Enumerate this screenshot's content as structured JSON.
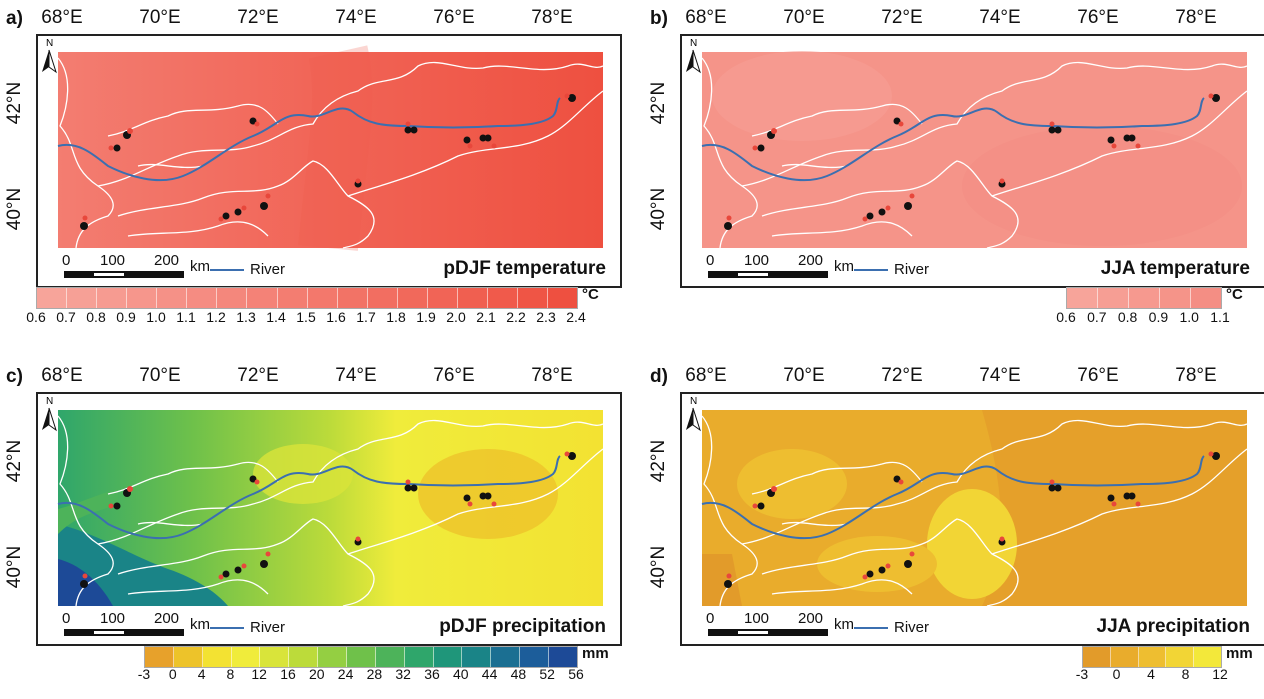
{
  "lon_labels": [
    "68°E",
    "70°E",
    "72°E",
    "74°E",
    "76°E",
    "78°E"
  ],
  "lat_labels": [
    "42°N",
    "40°N"
  ],
  "north_label": "N",
  "scale": {
    "ticks": [
      "0",
      "100",
      "200"
    ],
    "unit": "km"
  },
  "river_label": "River",
  "colors": {
    "river": "#3b6fb0",
    "border": "#ffffff",
    "site": "#111111",
    "site_alt": "#e8473b"
  },
  "panels": [
    {
      "id": "a",
      "label": "a)",
      "title": "pDJF temperature",
      "variable": "temperature",
      "unit": "°C",
      "legend_colors": [
        "#f7a49a",
        "#f6a096",
        "#f69b91",
        "#f6968c",
        "#f59187",
        "#f58c82",
        "#f4877c",
        "#f48277",
        "#f37d71",
        "#f3786c",
        "#f27366",
        "#f26e61",
        "#f1695b",
        "#f16456",
        "#f05f50",
        "#f05a4b",
        "#ef5545",
        "#ee5040"
      ],
      "legend_ticks": [
        "0.6",
        "0.7",
        "0.8",
        "0.9",
        "1.0",
        "1.1",
        "1.2",
        "1.3",
        "1.4",
        "1.5",
        "1.6",
        "1.7",
        "1.8",
        "1.9",
        "2.0",
        "2.1",
        "2.2",
        "2.3",
        "2.4"
      ]
    },
    {
      "id": "b",
      "label": "b)",
      "title": "JJA temperature",
      "variable": "temperature",
      "unit": "°C",
      "legend_colors": [
        "#f7a49a",
        "#f69e94",
        "#f6998f",
        "#f59489",
        "#f48e84"
      ],
      "legend_ticks": [
        "0.6",
        "0.7",
        "0.8",
        "0.9",
        "1.0",
        "1.1"
      ]
    },
    {
      "id": "c",
      "label": "c)",
      "title": "pDJF precipitation",
      "variable": "precipitation",
      "unit": "mm",
      "legend_colors": [
        "#e7a12b",
        "#edc32a",
        "#f3e232",
        "#f0ec3b",
        "#d9e43a",
        "#bcdb3a",
        "#94cf42",
        "#6fc14a",
        "#4db35a",
        "#2fa66b",
        "#1f967a",
        "#1a8487",
        "#1b6f92",
        "#1c5d9a",
        "#1d4a97"
      ],
      "legend_ticks": [
        "-3",
        "0",
        "4",
        "8",
        "12",
        "16",
        "20",
        "24",
        "28",
        "32",
        "36",
        "40",
        "44",
        "48",
        "52",
        "56"
      ]
    },
    {
      "id": "d",
      "label": "d)",
      "title": "JJA precipitation",
      "variable": "precipitation",
      "unit": "mm",
      "legend_colors": [
        "#e29b2a",
        "#e9ac2c",
        "#eebe30",
        "#f2d535",
        "#f3e83a"
      ],
      "legend_ticks": [
        "-3",
        "0",
        "4",
        "8",
        "12"
      ]
    }
  ]
}
